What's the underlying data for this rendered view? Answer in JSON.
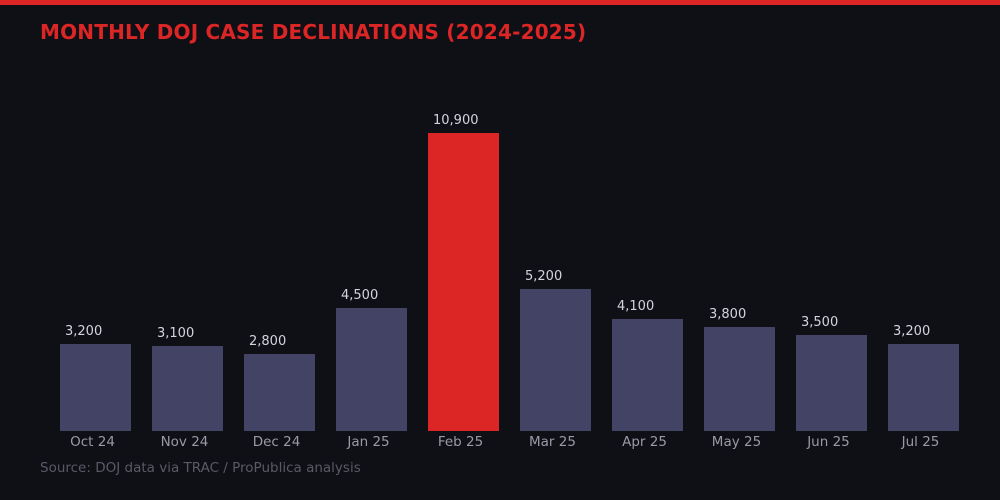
{
  "header": {
    "title": "MONTHLY DOJ CASE DECLINATIONS (2024-2025)"
  },
  "footer": {
    "source": "Source: DOJ data via TRAC / ProPublica analysis"
  },
  "colors": {
    "accent": "#dc2626",
    "bar": "#434366",
    "background": "#0f0f16"
  },
  "chart_data": {
    "type": "bar",
    "title": "MONTHLY DOJ CASE DECLINATIONS (2024-2025)",
    "categories": [
      "Oct 24",
      "Nov 24",
      "Dec 24",
      "Jan 25",
      "Feb 25",
      "Mar 25",
      "Apr 25",
      "May 25",
      "Jun 25",
      "Jul 25"
    ],
    "values": [
      3200,
      3100,
      2800,
      4500,
      10900,
      5200,
      4100,
      3800,
      3500,
      3200
    ],
    "labels": [
      "3,200",
      "3,100",
      "2,800",
      "4,500",
      "10,900",
      "5,200",
      "4,100",
      "3,800",
      "3,500",
      "3,200"
    ],
    "highlight_index": 4,
    "xlabel": "",
    "ylabel": "",
    "grid": false,
    "legend": null,
    "annotations": [
      "Source: DOJ data via TRAC / ProPublica analysis"
    ]
  }
}
